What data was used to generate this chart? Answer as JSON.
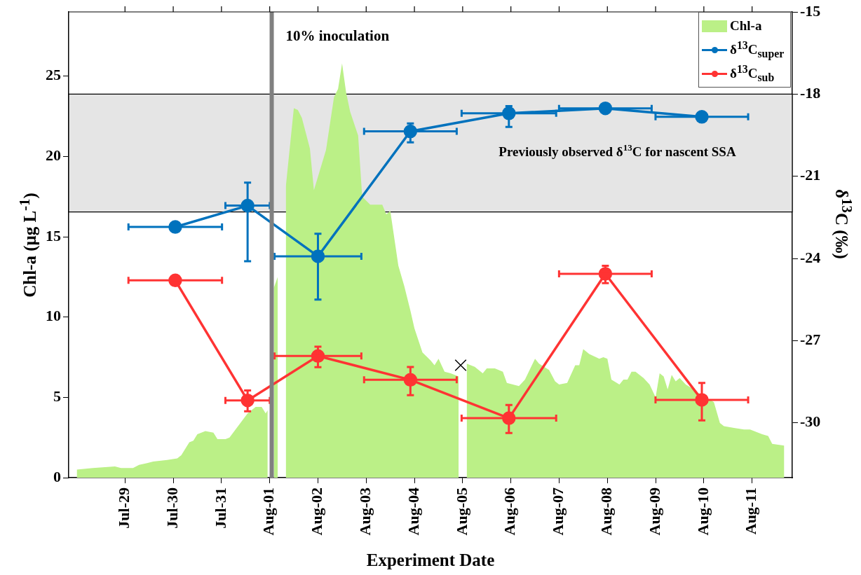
{
  "chart_data": {
    "type": "line",
    "xlabel": "Experiment Date",
    "ylabel": "Chl-a (μg L$^{-1}$)",
    "y2label": "δ$^{13}$C (‰)",
    "xlim": [
      "--07-27T20:00",
      "--08-11T20:00"
    ],
    "xticks": [
      {
        "value": "--07-29",
        "label": "Jul-29"
      },
      {
        "value": "--07-30",
        "label": "Jul-30"
      },
      {
        "value": "--07-31",
        "label": "Jul-31"
      },
      {
        "value": "--08-01",
        "label": "Aug-01"
      },
      {
        "value": "--08-02",
        "label": "Aug-02"
      },
      {
        "value": "--08-03",
        "label": "Aug-03"
      },
      {
        "value": "--08-04",
        "label": "Aug-04"
      },
      {
        "value": "--08-05",
        "label": "Aug-05"
      },
      {
        "value": "--08-06",
        "label": "Aug-06"
      },
      {
        "value": "--08-07",
        "label": "Aug-07"
      },
      {
        "value": "--08-08",
        "label": "Aug-08"
      },
      {
        "value": "--08-09",
        "label": "Aug-09"
      },
      {
        "value": "--08-10",
        "label": "Aug-10"
      },
      {
        "value": "--08-11",
        "label": "Aug-11"
      }
    ],
    "ylim": [
      0,
      29
    ],
    "yticks": [
      0,
      5,
      10,
      15,
      20,
      25
    ],
    "y2lim": [
      -32,
      -15
    ],
    "y2ticks": [
      -30,
      -27,
      -24,
      -21,
      -18,
      -15
    ],
    "legend": "top right",
    "series": [
      {
        "name": "Chl-a",
        "type": "area",
        "color": "#bbf087",
        "x": [
          "--07-28T00:00",
          "--07-28T08:00",
          "--07-28T19:00",
          "--07-28T22:00",
          "--07-29T04:00",
          "--07-29T07:00",
          "--07-29T11:00",
          "--07-29T14:00",
          "--07-29T21:00",
          "--07-30T02:00",
          "--07-30T04:00",
          "--07-30T08:00",
          "--07-30T10:00",
          "--07-30T12:00",
          "--07-30T16:00",
          "--07-30T20:00",
          "--07-30T22:00",
          "--07-31T02:00",
          "--07-31T04:00",
          "--07-31T07:00",
          "--07-31T10:00",
          "--07-31T13:00",
          "--07-31T17:00",
          "--07-31T20:00",
          "--07-31T22:00",
          "--07-31T23:00",
          "--08-01T01:00",
          "--08-01T02:00",
          "--08-01T04:00",
          "--08-01T06:00",
          "--08-01T08:00",
          "--08-01T12:00",
          "--08-01T14:00",
          "--08-01T16:00",
          "--08-01T20:00",
          "--08-01T22:00",
          "--08-02T04:00",
          "--08-02T08:00",
          "--08-02T10:00",
          "--08-02T12:00",
          "--08-02T14:00",
          "--08-02T16:00",
          "--08-02T20:00",
          "--08-02T22:00",
          "--08-03T02:00",
          "--08-03T08:00",
          "--08-03T10:00",
          "--08-03T12:00",
          "--08-03T16:00",
          "--08-03T19:00",
          "--08-03T22:00",
          "--08-04T00:00",
          "--08-04T04:00",
          "--08-04T08:00",
          "--08-04T10:00",
          "--08-04T12:00",
          "--08-04T15:00",
          "--08-04T18:00",
          "--08-04T22:00",
          "--08-05T00:00",
          "--08-05T02:00",
          "--08-05T06:00",
          "--08-05T10:00",
          "--08-05T12:00",
          "--08-05T16:00",
          "--08-05T20:00",
          "--08-05T22:00",
          "--08-06T04:00",
          "--08-06T07:00",
          "--08-06T12:00",
          "--08-06T14:00",
          "--08-06T19:00",
          "--08-06T22:00",
          "--08-07T00:00",
          "--08-07T04:00",
          "--08-07T08:00",
          "--08-07T10:00",
          "--08-07T12:00",
          "--08-07T15:00",
          "--08-07T20:00",
          "--08-07T22:00",
          "--08-08T00:00",
          "--08-08T02:00",
          "--08-08T06:00",
          "--08-08T08:00",
          "--08-08T10:00",
          "--08-08T12:00",
          "--08-08T14:00",
          "--08-08T18:00",
          "--08-08T21:00",
          "--08-09T00:00",
          "--08-09T02:00",
          "--08-09T04:00",
          "--08-09T06:00",
          "--08-09T08:00",
          "--08-09T10:00",
          "--08-09T12:00",
          "--08-09T15:00",
          "--08-09T19:00",
          "--08-09T22:00",
          "--08-10T05:00",
          "--08-10T08:00",
          "--08-10T10:00",
          "--08-10T15:00",
          "--08-10T20:00",
          "--08-10T23:00",
          "--08-11T05:00",
          "--08-11T08:00",
          "--08-11T10:00",
          "--08-11T16:00"
        ],
        "values": [
          0.5,
          0.6,
          0.7,
          0.6,
          0.6,
          0.8,
          0.9,
          1.0,
          1.1,
          1.2,
          1.4,
          2.2,
          2.3,
          2.7,
          2.9,
          2.8,
          2.4,
          2.4,
          2.5,
          3.0,
          3.5,
          4.0,
          4.4,
          4.4,
          4.0,
          4.2,
          null,
          11.8,
          12.5,
          null,
          18.1,
          23.0,
          22.9,
          22.4,
          20.5,
          17.9,
          20.4,
          23.7,
          24.2,
          25.8,
          24.0,
          22.8,
          21.3,
          17.5,
          17.0,
          17.0,
          16.4,
          16.6,
          13.2,
          11.9,
          10.4,
          9.3,
          7.8,
          7.3,
          7.0,
          7.4,
          6.6,
          6.5,
          6.3,
          null,
          7.1,
          6.9,
          6.5,
          6.8,
          6.8,
          6.6,
          5.9,
          5.7,
          6.1,
          7.4,
          7.1,
          6.7,
          6.0,
          5.8,
          5.9,
          7.0,
          7.0,
          8.0,
          7.7,
          7.4,
          7.5,
          7.4,
          6.1,
          5.8,
          6.1,
          6.1,
          6.6,
          6.6,
          6.2,
          5.8,
          5.0,
          6.5,
          6.3,
          5.5,
          6.4,
          6.0,
          6.2,
          5.8,
          5.5,
          5.2,
          4.7,
          3.4,
          3.2,
          3.1,
          3.0,
          3.0,
          2.7,
          2.6,
          2.1,
          2.0
        ]
      },
      {
        "name": "δ$^{13}$C$_{super}$",
        "axis": "y2",
        "color": "#0072bd",
        "marker": "circle",
        "x": [
          "--07-30T01:00",
          "--07-31T13:00",
          "--08-02T00:00",
          "--08-03T22:00",
          "--08-05T23:00",
          "--08-07T23:00",
          "--08-09T23:00"
        ],
        "values": [
          -22.85,
          -22.07,
          -23.92,
          -19.36,
          -18.7,
          -18.52,
          -18.83
        ],
        "errors": [
          null,
          [
            -24.1,
            -21.23
          ],
          [
            -25.5,
            -23.1
          ],
          [
            -19.76,
            -19.07
          ],
          [
            -19.2,
            -18.44
          ],
          null,
          null
        ],
        "xerrors": [
          0.97,
          0.46,
          0.9,
          0.96,
          0.98,
          0.96,
          0.96
        ]
      },
      {
        "name": "δ$^{13}$C$_{sub}$",
        "axis": "y2",
        "color": "#ff3333",
        "marker": "circle",
        "x": [
          "--07-30T01:00",
          "--07-31T13:00",
          "--08-02T00:00",
          "--08-03T22:00",
          "--08-05T23:00",
          "--08-07T23:00",
          "--08-09T23:00"
        ],
        "values": [
          -24.8,
          -29.18,
          -27.56,
          -28.43,
          -29.83,
          -24.56,
          -29.16
        ],
        "errors": [
          null,
          [
            -29.58,
            -28.82
          ],
          [
            -27.97,
            -27.22
          ],
          [
            -28.99,
            -27.96
          ],
          [
            -30.37,
            -29.35
          ],
          [
            -24.9,
            -24.27
          ],
          [
            -29.91,
            -28.54
          ]
        ],
        "xerrors": [
          0.97,
          0.46,
          0.9,
          0.96,
          0.98,
          0.96,
          0.96
        ]
      },
      {
        "type": "scatter",
        "color": "#000000",
        "marker": "cross",
        "x": [
          "--08-04T23:00"
        ],
        "values": [
          7.0
        ]
      }
    ],
    "bands": [
      {
        "axis": "y2",
        "from": -22.3,
        "to": -18,
        "label": "Previously observed δ$^{13}$C for nascent SSA",
        "color": "#e5e5e5"
      }
    ],
    "ref_lines": [
      {
        "axis": "x",
        "value": "--08-01T01:00",
        "label": "10% inoculation",
        "color": "#808080"
      }
    ]
  }
}
